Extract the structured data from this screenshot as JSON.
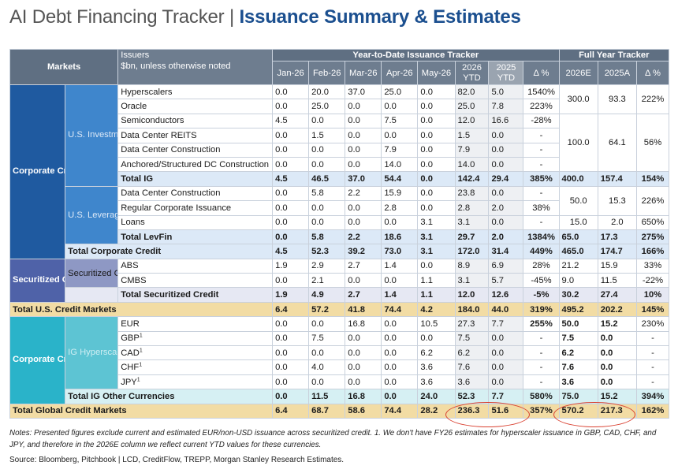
{
  "title": {
    "main": "AI Debt Financing Tracker",
    "sep": "|",
    "sub": "Issuance Summary & Estimates"
  },
  "header": {
    "markets": "Markets",
    "issuers_line1": "Issuers",
    "issuers_line2": "$bn, unless otherwise noted",
    "ytd_title": "Year-to-Date Issuance Tracker",
    "fy_title": "Full Year Tracker",
    "months": [
      "Jan-26",
      "Feb-26",
      "Mar-26",
      "Apr-26",
      "May-26"
    ],
    "ytd26_l1": "2026",
    "ytd26_l2": "YTD",
    "ytd25_l1": "2025",
    "ytd25_l2": "YTD",
    "delta": "Δ %",
    "fy26": "2026E",
    "fy25": "2025A",
    "fy_delta": "Δ %"
  },
  "groups": {
    "corp_us": "Corporate Credit (U.S.)",
    "us_ig": "U.S. Investment Grade",
    "us_lev": "U.S. Leverage Finance",
    "sec": "Securitized Credit (U.S.)",
    "sec_sub": "Securitized Credit",
    "corp_non": "Corporate Credit (non-U.S.)",
    "ig_hyp": "IG Hyperscalers"
  },
  "rows": {
    "hyperscalers": {
      "label": "Hyperscalers",
      "m": [
        "0.0",
        "20.0",
        "37.0",
        "25.0",
        "0.0"
      ],
      "y26": "82.0",
      "y25": "5.0",
      "d": "1540%"
    },
    "oracle": {
      "label": "Oracle",
      "m": [
        "0.0",
        "25.0",
        "0.0",
        "0.0",
        "0.0"
      ],
      "y26": "25.0",
      "y25": "7.8",
      "d": "223%"
    },
    "semis": {
      "label": "Semiconductors",
      "m": [
        "4.5",
        "0.0",
        "0.0",
        "7.5",
        "0.0"
      ],
      "y26": "12.0",
      "y25": "16.6",
      "d": "-28%"
    },
    "dc_reits": {
      "label": "Data Center REITS",
      "m": [
        "0.0",
        "1.5",
        "0.0",
        "0.0",
        "0.0"
      ],
      "y26": "1.5",
      "y25": "0.0",
      "d": "-"
    },
    "dc_const": {
      "label": "Data Center Construction",
      "m": [
        "0.0",
        "0.0",
        "0.0",
        "7.9",
        "0.0"
      ],
      "y26": "7.9",
      "y25": "0.0",
      "d": "-"
    },
    "anchored": {
      "label": "Anchored/Structured DC Construction",
      "m": [
        "0.0",
        "0.0",
        "0.0",
        "14.0",
        "0.0"
      ],
      "y26": "14.0",
      "y25": "0.0",
      "d": "-"
    },
    "total_ig": {
      "label": "Total IG",
      "m": [
        "4.5",
        "46.5",
        "37.0",
        "54.4",
        "0.0"
      ],
      "y26": "142.4",
      "y25": "29.4",
      "d": "385%",
      "f26": "400.0",
      "f25": "157.4",
      "fd": "154%"
    },
    "lev_dc": {
      "label": "Data Center Construction",
      "m": [
        "0.0",
        "5.8",
        "2.2",
        "15.9",
        "0.0"
      ],
      "y26": "23.8",
      "y25": "0.0",
      "d": "-"
    },
    "lev_corp": {
      "label": "Regular Corporate Issuance",
      "m": [
        "0.0",
        "0.0",
        "0.0",
        "2.8",
        "0.0"
      ],
      "y26": "2.8",
      "y25": "2.0",
      "d": "38%"
    },
    "loans": {
      "label": "Loans",
      "m": [
        "0.0",
        "0.0",
        "0.0",
        "0.0",
        "3.1"
      ],
      "y26": "3.1",
      "y25": "0.0",
      "d": "-",
      "f26": "15.0",
      "f25": "2.0",
      "fd": "650%"
    },
    "total_lev": {
      "label": "Total LevFin",
      "m": [
        "0.0",
        "5.8",
        "2.2",
        "18.6",
        "3.1"
      ],
      "y26": "29.7",
      "y25": "2.0",
      "d": "1384%",
      "f26": "65.0",
      "f25": "17.3",
      "fd": "275%"
    },
    "total_corp": {
      "label": "Total Corporate Credit",
      "m": [
        "4.5",
        "52.3",
        "39.2",
        "73.0",
        "3.1"
      ],
      "y26": "172.0",
      "y25": "31.4",
      "d": "449%",
      "f26": "465.0",
      "f25": "174.7",
      "fd": "166%"
    },
    "abs": {
      "label": "ABS",
      "m": [
        "1.9",
        "2.9",
        "2.7",
        "1.4",
        "0.0"
      ],
      "y26": "8.9",
      "y25": "6.9",
      "d": "28%",
      "f26": "21.2",
      "f25": "15.9",
      "fd": "33%"
    },
    "cmbs": {
      "label": "CMBS",
      "m": [
        "0.0",
        "2.1",
        "0.0",
        "0.0",
        "1.1"
      ],
      "y26": "3.1",
      "y25": "5.7",
      "d": "-45%",
      "f26": "9.0",
      "f25": "11.5",
      "fd": "-22%"
    },
    "total_sec": {
      "label": "Total Securitized Credit",
      "m": [
        "1.9",
        "4.9",
        "2.7",
        "1.4",
        "1.1"
      ],
      "y26": "12.0",
      "y25": "12.6",
      "d": "-5%",
      "f26": "30.2",
      "f25": "27.4",
      "fd": "10%"
    },
    "total_us": {
      "label": "Total U.S. Credit Markets",
      "m": [
        "6.4",
        "57.2",
        "41.8",
        "74.4",
        "4.2"
      ],
      "y26": "184.0",
      "y25": "44.0",
      "d": "319%",
      "f26": "495.2",
      "f25": "202.2",
      "fd": "145%"
    },
    "eur": {
      "label": "EUR",
      "m": [
        "0.0",
        "0.0",
        "16.8",
        "0.0",
        "10.5"
      ],
      "y26": "27.3",
      "y25": "7.7",
      "d": "255%",
      "f26": "50.0",
      "f25": "15.2",
      "fd": "230%"
    },
    "gbp": {
      "label": "GBP",
      "m": [
        "0.0",
        "7.5",
        "0.0",
        "0.0",
        "0.0"
      ],
      "y26": "7.5",
      "y25": "0.0",
      "d": "-",
      "f26": "7.5",
      "f25": "0.0",
      "fd": "-"
    },
    "cad": {
      "label": "CAD",
      "m": [
        "0.0",
        "0.0",
        "0.0",
        "0.0",
        "6.2"
      ],
      "y26": "6.2",
      "y25": "0.0",
      "d": "-",
      "f26": "6.2",
      "f25": "0.0",
      "fd": "-"
    },
    "chf": {
      "label": "CHF",
      "m": [
        "0.0",
        "4.0",
        "0.0",
        "0.0",
        "3.6"
      ],
      "y26": "7.6",
      "y25": "0.0",
      "d": "-",
      "f26": "7.6",
      "f25": "0.0",
      "fd": "-"
    },
    "jpy": {
      "label": "JPY",
      "m": [
        "0.0",
        "0.0",
        "0.0",
        "0.0",
        "3.6"
      ],
      "y26": "3.6",
      "y25": "0.0",
      "d": "-",
      "f26": "3.6",
      "f25": "0.0",
      "fd": "-"
    },
    "total_oth": {
      "label": "Total IG Other Currencies",
      "m": [
        "0.0",
        "11.5",
        "16.8",
        "0.0",
        "24.0"
      ],
      "y26": "52.3",
      "y25": "7.7",
      "d": "580%",
      "f26": "75.0",
      "f25": "15.2",
      "fd": "394%"
    },
    "total_glob": {
      "label": "Total Global Credit Markets",
      "m": [
        "6.4",
        "68.7",
        "58.6",
        "74.4",
        "28.2"
      ],
      "y26": "236.3",
      "y25": "51.6",
      "d": "357%",
      "f26": "570.2",
      "f25": "217.3",
      "fd": "162%"
    }
  },
  "merged": {
    "hyp_oracle": {
      "f26": "300.0",
      "f25": "93.3",
      "fd": "222%"
    },
    "ig_mid": {
      "f26": "100.0",
      "f25": "64.1",
      "fd": "56%"
    },
    "lev_top": {
      "f26": "50.0",
      "f25": "15.3",
      "fd": "226%"
    }
  },
  "footnote_mark": "1",
  "notes": "Notes: Presented figures exclude current and estimated EUR/non-USD issuance across securitized credit. 1. We don't have FY26 estimates for hyperscaler issuance in GBP, CAD, CHF, and JPY, and therefore in the 2026E column we reflect current YTD values for these currencies.",
  "source": "Source: Bloomberg, Pitchbook | LCD, CreditFlow, TREPP, Morgan Stanley Research Estimates.",
  "colors": {
    "title_accent": "#1b4f8f",
    "header": "#5f6f82",
    "corp_blue": "#1f5aa0",
    "sec_indigo": "#4f62a8",
    "nonus_cyan": "#2ab3c9",
    "grand_total": "#f2dca4",
    "circle": "#d94030"
  }
}
